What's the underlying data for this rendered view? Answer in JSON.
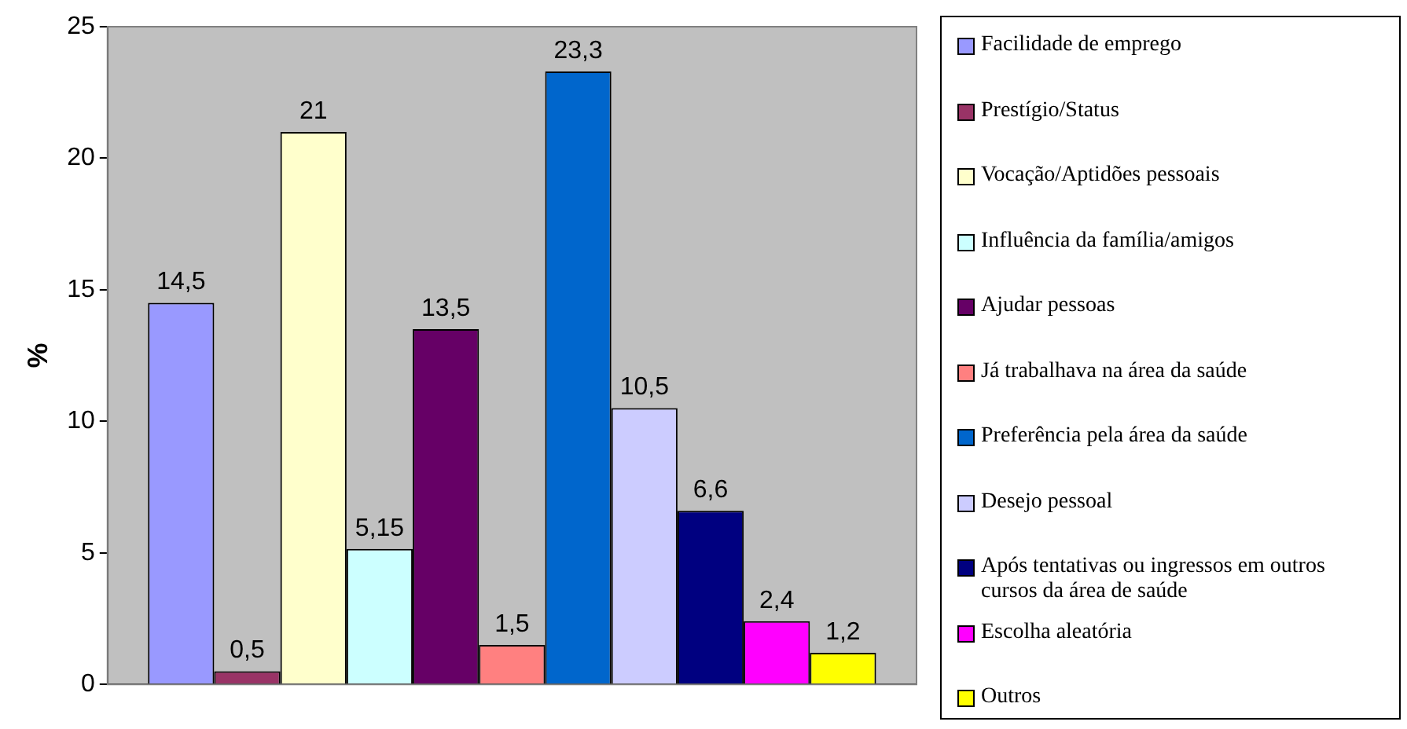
{
  "chart_data": {
    "type": "bar",
    "ylabel": "%",
    "categories": [
      null
    ],
    "ylim": [
      0,
      25
    ],
    "yticks": [
      0,
      5,
      10,
      15,
      20,
      25
    ],
    "grid": false,
    "legend": "right",
    "series": [
      {
        "name": "Facilidade de emprego",
        "color": "#9999ff",
        "values": [
          14.5
        ],
        "value_labels": [
          "14,5"
        ]
      },
      {
        "name": "Prestígio/Status",
        "color": "#993366",
        "values": [
          0.5
        ],
        "value_labels": [
          "0,5"
        ]
      },
      {
        "name": "Vocação/Aptidões pessoais",
        "color": "#ffffcc",
        "values": [
          21
        ],
        "value_labels": [
          "21"
        ]
      },
      {
        "name": "Influência da família/amigos",
        "color": "#ccffff",
        "values": [
          5.15
        ],
        "value_labels": [
          "5,15"
        ]
      },
      {
        "name": "Ajudar pessoas",
        "color": "#660066",
        "values": [
          13.5
        ],
        "value_labels": [
          "13,5"
        ]
      },
      {
        "name": "Já trabalhava na área da saúde",
        "color": "#ff8080",
        "values": [
          1.5
        ],
        "value_labels": [
          "1,5"
        ]
      },
      {
        "name": "Preferência pela área da saúde",
        "color": "#0066cc",
        "values": [
          23.3
        ],
        "value_labels": [
          "23,3"
        ]
      },
      {
        "name": "Desejo pessoal",
        "color": "#ccccff",
        "values": [
          10.5
        ],
        "value_labels": [
          "10,5"
        ]
      },
      {
        "name": "Após tentativas ou ingressos em outros cursos da área de saúde",
        "color": "#000080",
        "values": [
          6.6
        ],
        "value_labels": [
          "6,6"
        ]
      },
      {
        "name": "Escolha aleatória",
        "color": "#ff00ff",
        "values": [
          2.4
        ],
        "value_labels": [
          "2,4"
        ]
      },
      {
        "name": "Outros",
        "color": "#ffff00",
        "values": [
          1.2
        ],
        "value_labels": [
          "1,2"
        ]
      }
    ]
  }
}
